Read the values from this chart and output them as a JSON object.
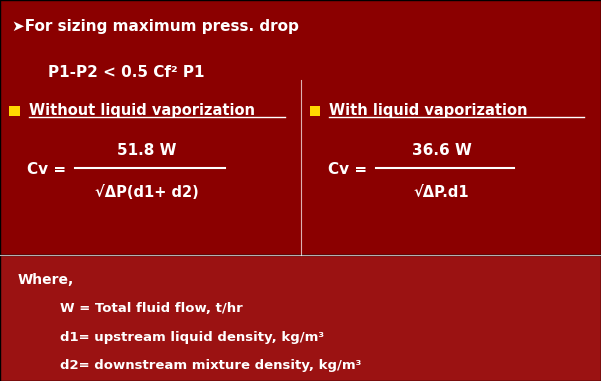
{
  "bg_top_color": "#8B0000",
  "bg_bottom_color": "#9B1010",
  "text_color": "#FFFFFF",
  "bullet_color": "#FFD700",
  "divider_color": "#FFFFFF",
  "line1": "➤For sizing maximum press. drop",
  "line2": "P1-P2 < 0.5 Cf² P1",
  "left_title": "Without liquid vaporization",
  "right_title": "With liquid vaporization",
  "left_cv_label": "Cv =",
  "left_cv_num": "51.8 W",
  "left_cv_den": "√ΔP(d1+ d2)",
  "right_cv_label": "Cv =",
  "right_cv_num": "36.6 W",
  "right_cv_den": "√ΔP.d1",
  "where_label": "Where,",
  "where_items": [
    "W = Total fluid flow, t/hr",
    "d1= upstream liquid density, kg/m³",
    "d2= downstream mixture density, kg/m³"
  ],
  "figsize": [
    6.01,
    3.81
  ],
  "dpi": 100
}
